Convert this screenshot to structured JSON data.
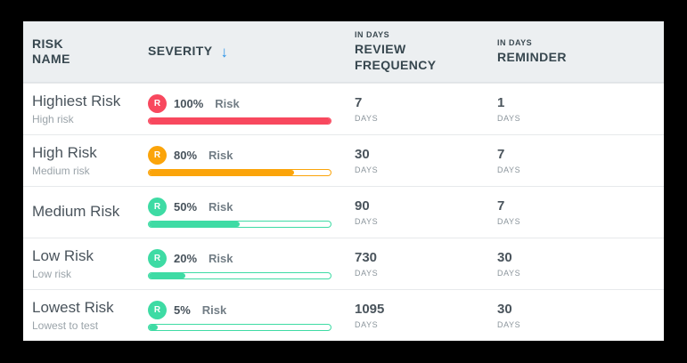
{
  "colors": {
    "frame": "#000000",
    "header_bg": "#eceff1",
    "header_text": "#37474f",
    "sort_arrow": "#2a93e8",
    "row_title": "#4a545c",
    "subtitle": "#9aa3a9",
    "divider": "#e7e9eb",
    "risk_red": "#f8485e",
    "risk_orange": "#fba40a",
    "risk_green": "#3edba4"
  },
  "table": {
    "columns": [
      {
        "label": "RISK NAME",
        "sublabel": ""
      },
      {
        "label": "SEVERITY",
        "sublabel": "",
        "sort_icon": "↓"
      },
      {
        "label": "REVIEW FREQUENCY",
        "sublabel": "IN DAYS"
      },
      {
        "label": "REMINDER",
        "sublabel": "IN DAYS"
      }
    ],
    "rows": [
      {
        "name": "Highiest Risk",
        "subtitle": "High risk",
        "badge_letter": "R",
        "percent": "100%",
        "percent_value": 100,
        "risk_label": "Risk",
        "color": "#f8485e",
        "review_frequency": "7",
        "review_frequency_unit": "DAYS",
        "reminder": "1",
        "reminder_unit": "DAYS"
      },
      {
        "name": "High Risk",
        "subtitle": "Medium risk",
        "badge_letter": "R",
        "percent": "80%",
        "percent_value": 80,
        "risk_label": "Risk",
        "color": "#fba40a",
        "review_frequency": "30",
        "review_frequency_unit": "DAYS",
        "reminder": "7",
        "reminder_unit": "DAYS"
      },
      {
        "name": "Medium Risk",
        "subtitle": "",
        "badge_letter": "R",
        "percent": "50%",
        "percent_value": 50,
        "risk_label": "Risk",
        "color": "#3edba4",
        "review_frequency": "90",
        "review_frequency_unit": "DAYS",
        "reminder": "7",
        "reminder_unit": "DAYS"
      },
      {
        "name": "Low Risk",
        "subtitle": "Low risk",
        "badge_letter": "R",
        "percent": "20%",
        "percent_value": 20,
        "risk_label": "Risk",
        "color": "#3edba4",
        "review_frequency": "730",
        "review_frequency_unit": "DAYS",
        "reminder": "30",
        "reminder_unit": "DAYS"
      },
      {
        "name": "Lowest Risk",
        "subtitle": "Lowest to test",
        "badge_letter": "R",
        "percent": "5%",
        "percent_value": 5,
        "risk_label": "Risk",
        "color": "#3edba4",
        "review_frequency": "1095",
        "review_frequency_unit": "DAYS",
        "reminder": "30",
        "reminder_unit": "DAYS"
      }
    ]
  }
}
